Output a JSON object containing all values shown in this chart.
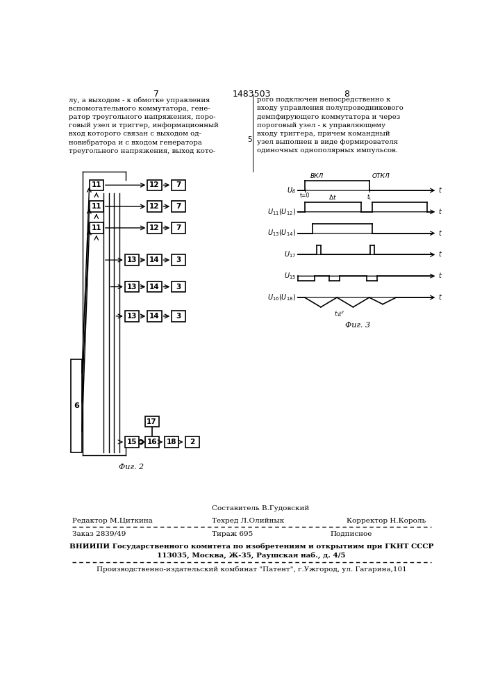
{
  "page_num_left": "7",
  "page_num_center": "1483503",
  "page_num_right": "8",
  "text_left": "лу, а выходом - к обмотке управления\nвспомогательного коммутатора, гене-\nратор треугольного напряжения, поро-\nговый узел и триггер, информационный\nвход которого связан с выходом од-\nновибратора и с входом генератора\nтреугольного напряжения, выход кото-",
  "text_right": "рого подключен непосредственно к\nвходу управления полупроводникового\nдемпфирующего коммутатора и через\nпороговый узел - к управляющему\nвходу триггера, причем командный\nузел выполнен в виде формирователя\nодиночных однополярных импульсов.",
  "line_num_5": "5",
  "bottom_editor": "Редактор М.Циткина",
  "bottom_composer": "Составитель В.Гудовский",
  "bottom_techred": "Техред Л.Олийнык",
  "bottom_corrector": "Корректор Н.Король",
  "bottom_order": "Заказ 2839/49",
  "bottom_tirazh": "Тираж 695",
  "bottom_podpisnoe": "Подписное",
  "bottom_vniip": "ВНИИПИ Государственного комитета по изобретениям и открытиям при ГКНТ СССР",
  "bottom_address": "113035, Москва, Ж-35, Раушская наб., д. 4/5",
  "bottom_factory": "Производственно-издательский комбинат \"Патент\", г.Ужгород, ул. Гагарина,101",
  "fig2_caption": "Фиг. 2",
  "fig3_caption": "Фиг. 3",
  "bg_color": "#ffffff",
  "text_color": "#000000",
  "line_color": "#000000"
}
